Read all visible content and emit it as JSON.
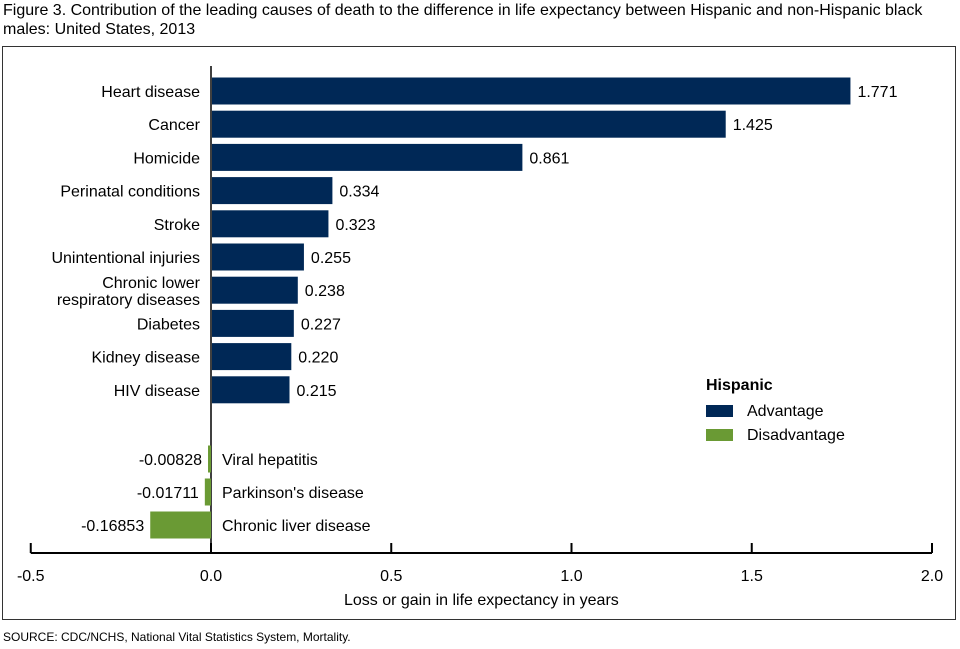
{
  "title": "Figure 3. Contribution of the leading causes of death to the difference in life expectancy between Hispanic and non-Hispanic black males: United States, 2013",
  "source": "SOURCE: CDC/NCHS, National Vital Statistics System, Mortality.",
  "colors": {
    "advantage": "#002856",
    "disadvantage": "#6a9a34"
  },
  "chart_data": {
    "type": "bar",
    "orientation": "horizontal",
    "title": "Figure 3. Contribution of the leading causes of death to the difference in life expectancy between Hispanic and non-Hispanic black males: United States, 2013",
    "xlabel": "Loss or gain in life expectancy in years",
    "ylabel": "",
    "xlim": [
      -0.5,
      2.0
    ],
    "xticks": [
      -0.5,
      0.0,
      0.5,
      1.0,
      1.5,
      2.0
    ],
    "xtick_labels": [
      "-0.5",
      "0.0",
      "0.5",
      "1.0",
      "1.5",
      "2.0"
    ],
    "grid": false,
    "legend": {
      "title": "Hispanic",
      "position": "right",
      "entries": [
        "Advantage",
        "Disadvantage"
      ]
    },
    "categories": [
      [
        "Heart disease"
      ],
      [
        "Cancer"
      ],
      [
        "Homicide"
      ],
      [
        "Perinatal conditions"
      ],
      [
        "Stroke"
      ],
      [
        "Unintentional injuries"
      ],
      [
        "Chronic lower",
        "respiratory diseases"
      ],
      [
        "Diabetes"
      ],
      [
        "Kidney disease"
      ],
      [
        "HIV disease"
      ],
      [
        "Viral hepatitis"
      ],
      [
        "Parkinson's disease"
      ],
      [
        "Chronic liver disease"
      ]
    ],
    "values": [
      1.771,
      1.425,
      0.861,
      0.334,
      0.323,
      0.255,
      0.238,
      0.227,
      0.22,
      0.215,
      -0.00828,
      -0.01711,
      -0.16853
    ],
    "value_labels": [
      "1.771",
      "1.425",
      "0.861",
      "0.334",
      "0.323",
      "0.255",
      "0.238",
      "0.227",
      "0.220",
      "0.215",
      "-0.00828",
      "-0.01711",
      "-0.16853"
    ],
    "series_of_bar": [
      "Advantage",
      "Advantage",
      "Advantage",
      "Advantage",
      "Advantage",
      "Advantage",
      "Advantage",
      "Advantage",
      "Advantage",
      "Advantage",
      "Disadvantage",
      "Disadvantage",
      "Disadvantage"
    ]
  }
}
